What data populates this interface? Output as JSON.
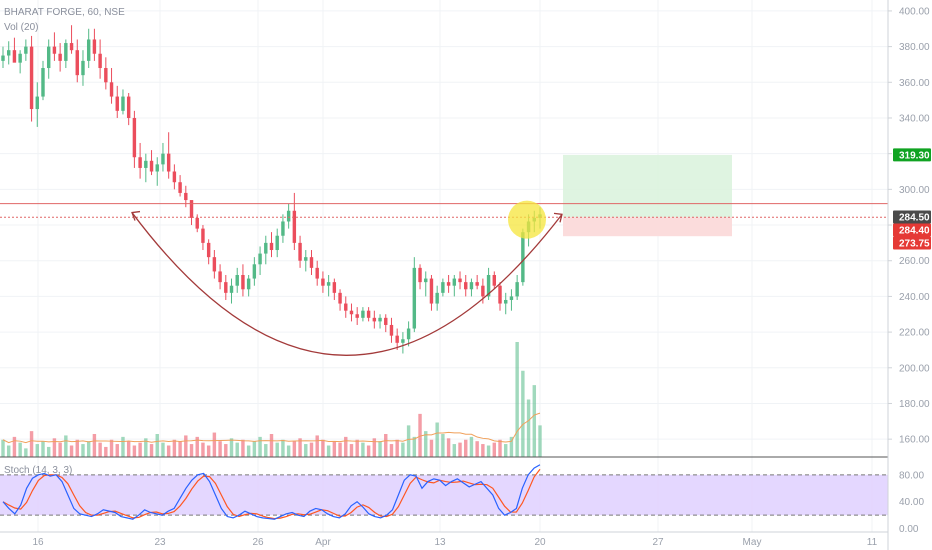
{
  "chart_data": {
    "type": "candlestick",
    "title": "BHARAT FORGE, 60, NSE",
    "volume_label": "Vol (20)",
    "stoch_label": "Stoch (14, 3, 3)",
    "colors": {
      "up": "#53b987",
      "down": "#eb4d5c",
      "wick": "#555555",
      "resistance": "#e06666",
      "cup": "#a33a3a",
      "target_zone": "#d9f2dc",
      "stop_zone": "#fbdada",
      "target_tag": "#10a322",
      "current_tag": "#4a4a4a",
      "stop_tag": "#e53935",
      "stoch_band": "#e1d3ff",
      "stoch_k": "#2962ff",
      "stoch_d": "#ff5722",
      "vol_ma": "#f0a05a",
      "highlight": "#f5e53b"
    },
    "price_axis": {
      "ticks": [
        "400.00",
        "380.00",
        "360.00",
        "340.00",
        "320.00",
        "300.00",
        "280.00",
        "260.00",
        "240.00",
        "220.00",
        "200.00",
        "180.00",
        "160.00"
      ],
      "range": [
        150,
        405
      ]
    },
    "stoch_axis": {
      "ticks": [
        "80.00",
        "40.00",
        "0.00"
      ],
      "range": [
        -5,
        105
      ],
      "bands": [
        20,
        80
      ]
    },
    "time_axis": {
      "labels": [
        "16",
        "23",
        "26",
        "Apr",
        "13",
        "20",
        "27",
        "May",
        "11"
      ]
    },
    "tags": {
      "target": "319.30",
      "current": "284.50",
      "entry": "284.40",
      "stop": "273.75"
    },
    "levels": {
      "resistance": 292,
      "entry_line": 284.4,
      "target": 319.3,
      "entry": 284.4,
      "stop": 273.75
    },
    "cup": {
      "left": 287,
      "bottom": 207,
      "right": 286
    },
    "candles_ohlc_approx": [
      [
        372,
        380,
        368,
        375
      ],
      [
        375,
        383,
        370,
        378
      ],
      [
        378,
        385,
        373,
        371
      ],
      [
        371,
        378,
        365,
        376
      ],
      [
        376,
        384,
        372,
        380
      ],
      [
        380,
        386,
        338,
        345
      ],
      [
        345,
        360,
        335,
        352
      ],
      [
        352,
        372,
        350,
        368
      ],
      [
        368,
        384,
        362,
        380
      ],
      [
        380,
        388,
        372,
        376
      ],
      [
        376,
        382,
        366,
        372
      ],
      [
        372,
        384,
        368,
        382
      ],
      [
        382,
        392,
        376,
        378
      ],
      [
        378,
        384,
        360,
        364
      ],
      [
        364,
        378,
        358,
        372
      ],
      [
        372,
        390,
        368,
        384
      ],
      [
        384,
        390,
        372,
        376
      ],
      [
        376,
        384,
        362,
        368
      ],
      [
        368,
        374,
        356,
        360
      ],
      [
        360,
        368,
        348,
        352
      ],
      [
        352,
        358,
        340,
        344
      ],
      [
        344,
        356,
        342,
        352
      ],
      [
        352,
        354,
        336,
        340
      ],
      [
        340,
        344,
        312,
        318
      ],
      [
        318,
        326,
        306,
        312
      ],
      [
        312,
        320,
        304,
        316
      ],
      [
        316,
        322,
        308,
        310
      ],
      [
        310,
        318,
        302,
        314
      ],
      [
        314,
        326,
        310,
        320
      ],
      [
        320,
        332,
        306,
        310
      ],
      [
        310,
        314,
        300,
        304
      ],
      [
        304,
        308,
        296,
        298
      ],
      [
        298,
        302,
        290,
        294
      ],
      [
        294,
        290,
        280,
        284
      ],
      [
        284,
        286,
        276,
        278
      ],
      [
        278,
        280,
        266,
        270
      ],
      [
        270,
        272,
        258,
        262
      ],
      [
        262,
        266,
        250,
        254
      ],
      [
        254,
        258,
        244,
        248
      ],
      [
        248,
        252,
        238,
        242
      ],
      [
        242,
        250,
        236,
        246
      ],
      [
        246,
        256,
        242,
        252
      ],
      [
        252,
        258,
        240,
        244
      ],
      [
        244,
        252,
        240,
        250
      ],
      [
        250,
        262,
        246,
        258
      ],
      [
        258,
        268,
        252,
        264
      ],
      [
        264,
        274,
        258,
        270
      ],
      [
        270,
        276,
        262,
        266
      ],
      [
        266,
        278,
        262,
        274
      ],
      [
        274,
        286,
        270,
        282
      ],
      [
        282,
        292,
        278,
        288
      ],
      [
        288,
        298,
        266,
        270
      ],
      [
        270,
        274,
        256,
        260
      ],
      [
        260,
        266,
        254,
        262
      ],
      [
        262,
        266,
        252,
        256
      ],
      [
        256,
        260,
        246,
        250
      ],
      [
        250,
        254,
        242,
        246
      ],
      [
        246,
        252,
        240,
        248
      ],
      [
        248,
        250,
        238,
        242
      ],
      [
        242,
        244,
        232,
        236
      ],
      [
        236,
        240,
        228,
        232
      ],
      [
        232,
        236,
        226,
        230
      ],
      [
        230,
        234,
        224,
        228
      ],
      [
        228,
        234,
        226,
        232
      ],
      [
        232,
        234,
        226,
        228
      ],
      [
        228,
        232,
        222,
        226
      ],
      [
        226,
        230,
        222,
        228
      ],
      [
        228,
        230,
        220,
        224
      ],
      [
        224,
        228,
        214,
        218
      ],
      [
        218,
        222,
        210,
        214
      ],
      [
        214,
        220,
        208,
        216
      ],
      [
        216,
        226,
        212,
        222
      ],
      [
        222,
        262,
        220,
        256
      ],
      [
        256,
        258,
        244,
        248
      ],
      [
        248,
        254,
        240,
        250
      ],
      [
        250,
        252,
        232,
        236
      ],
      [
        236,
        246,
        232,
        242
      ],
      [
        242,
        250,
        240,
        248
      ],
      [
        248,
        252,
        242,
        246
      ],
      [
        246,
        252,
        240,
        250
      ],
      [
        250,
        254,
        244,
        248
      ],
      [
        248,
        252,
        240,
        244
      ],
      [
        244,
        250,
        240,
        248
      ],
      [
        248,
        252,
        244,
        246
      ],
      [
        246,
        250,
        236,
        240
      ],
      [
        240,
        256,
        238,
        252
      ],
      [
        252,
        254,
        244,
        246
      ],
      [
        246,
        248,
        232,
        236
      ],
      [
        236,
        242,
        230,
        238
      ],
      [
        238,
        244,
        232,
        240
      ],
      [
        240,
        252,
        238,
        248
      ],
      [
        248,
        278,
        246,
        276
      ],
      [
        276,
        286,
        268,
        282
      ],
      [
        282,
        288,
        276,
        284
      ],
      [
        284,
        290,
        278,
        286
      ]
    ],
    "volume_approx": [
      12,
      8,
      14,
      10,
      6,
      18,
      9,
      11,
      7,
      13,
      10,
      15,
      8,
      12,
      9,
      11,
      16,
      10,
      7,
      12,
      9,
      14,
      11,
      8,
      10,
      13,
      9,
      16,
      10,
      8,
      12,
      11,
      15,
      9,
      14,
      10,
      8,
      17,
      11,
      9,
      13,
      10,
      12,
      8,
      11,
      14,
      9,
      16,
      10,
      12,
      8,
      11,
      13,
      9,
      10,
      15,
      12,
      8,
      11,
      10,
      14,
      9,
      12,
      10,
      8,
      13,
      11,
      16,
      9,
      12,
      10,
      22,
      14,
      30,
      18,
      12,
      24,
      16,
      13,
      9,
      10,
      12,
      14,
      11,
      9,
      8,
      10,
      12,
      9,
      14,
      80,
      60,
      40,
      50,
      22
    ],
    "stoch_k_approx": [
      40,
      30,
      22,
      35,
      60,
      75,
      80,
      82,
      78,
      80,
      70,
      50,
      30,
      22,
      20,
      18,
      22,
      28,
      26,
      24,
      18,
      16,
      14,
      20,
      28,
      24,
      22,
      20,
      26,
      30,
      45,
      60,
      72,
      80,
      82,
      70,
      50,
      30,
      18,
      16,
      20,
      26,
      22,
      18,
      16,
      15,
      14,
      18,
      22,
      24,
      20,
      18,
      26,
      30,
      28,
      22,
      18,
      16,
      22,
      34,
      40,
      32,
      22,
      18,
      16,
      20,
      28,
      50,
      72,
      80,
      78,
      60,
      70,
      74,
      72,
      64,
      70,
      74,
      68,
      62,
      66,
      70,
      60,
      50,
      30,
      20,
      24,
      30,
      60,
      80,
      90,
      95
    ]
  },
  "icons": [
    "cup-arc-arrow-icon",
    "highlight-circle-icon"
  ]
}
